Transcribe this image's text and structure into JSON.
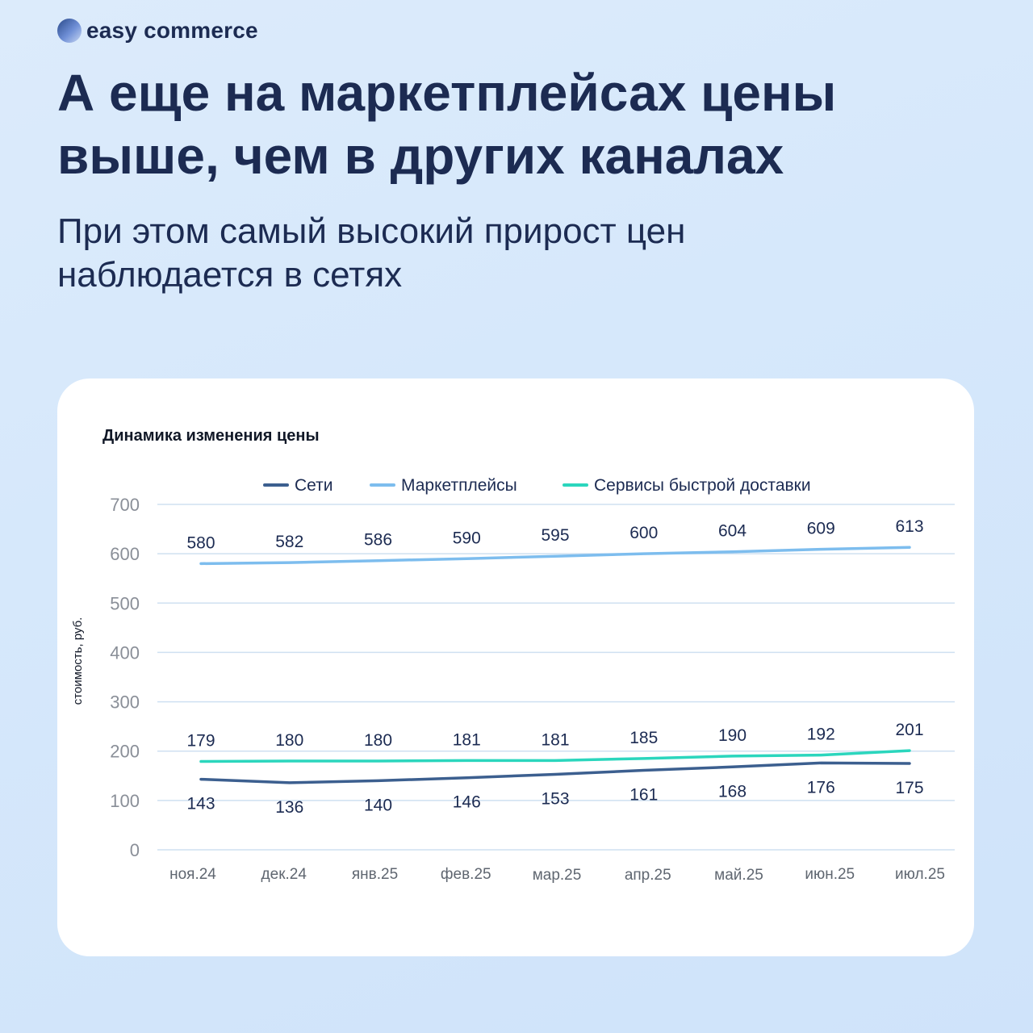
{
  "brand": {
    "name": "easy commerce"
  },
  "headline": "А еще на маркетплейсах цены выше, чем в других каналах",
  "subheadline": "При этом самый высокий прирост цен наблюдается в сетях",
  "chart_data": {
    "type": "line",
    "title": "Динамика изменения цены",
    "ylabel": "стоимость, руб.",
    "xlabel": "",
    "ylim": [
      0,
      700
    ],
    "yticks": [
      0,
      100,
      200,
      300,
      400,
      500,
      600,
      700
    ],
    "grid": true,
    "legend_position": "top",
    "categories": [
      "ноя.24",
      "дек.24",
      "янв.25",
      "фев.25",
      "мар.25",
      "апр.25",
      "май.25",
      "июн.25",
      "июл.25"
    ],
    "series": [
      {
        "name": "Сети",
        "color": "#3c5f8f",
        "values": [
          143,
          136,
          140,
          146,
          153,
          161,
          168,
          176,
          175
        ],
        "label_position": "below"
      },
      {
        "name": "Маркетплейсы",
        "color": "#7dbdee",
        "values": [
          580,
          582,
          586,
          590,
          595,
          600,
          604,
          609,
          613
        ],
        "label_position": "above"
      },
      {
        "name": "Сервисы быстрой доставки",
        "color": "#2bd6bd",
        "values": [
          179,
          180,
          180,
          181,
          181,
          185,
          190,
          192,
          201
        ],
        "label_position": "above"
      }
    ]
  }
}
